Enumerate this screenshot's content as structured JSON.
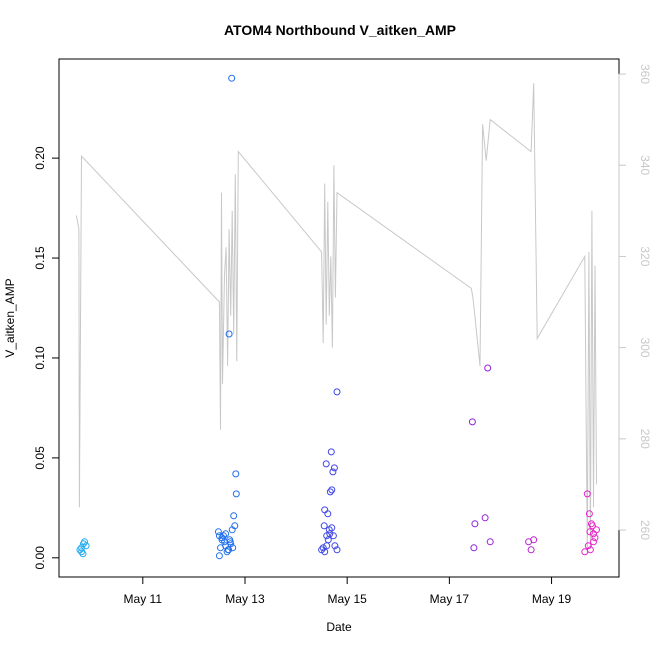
{
  "chart_data": {
    "type": "scatter",
    "title": "ATOM4 Northbound V_aitken_AMP",
    "xlabel": "Date",
    "ylabel": "V_aitken_AMP",
    "x_ticks": [
      {
        "label": "May 11",
        "value": 11
      },
      {
        "label": "May 13",
        "value": 13
      },
      {
        "label": "May 15",
        "value": 15
      },
      {
        "label": "May 17",
        "value": 17
      },
      {
        "label": "May 19",
        "value": 19
      }
    ],
    "xlim": [
      9.36,
      20.32
    ],
    "ylim": [
      -0.0096,
      0.2496
    ],
    "y_ticks": [
      0.0,
      0.05,
      0.1,
      0.15,
      0.2
    ],
    "y_tick_labels": [
      "0.00",
      "0.05",
      "0.10",
      "0.15",
      "0.20"
    ],
    "y2lim": [
      249.7,
      363.3
    ],
    "y2_ticks": [
      260,
      280,
      300,
      320,
      340,
      360
    ],
    "y2_tick_labels": [
      "260",
      "280",
      "300",
      "320",
      "340",
      "360"
    ],
    "grid": false,
    "colors": {
      "points_start": "#22aaee",
      "points_mid1": "#2266ee",
      "points_mid2": "#6622dd",
      "points_end": "#ee22cc",
      "line": "#c8c8c8",
      "axis": "#000000",
      "right_axis": "#c8c8c8"
    },
    "series": [
      {
        "kind": "points",
        "x": [
          9.77,
          9.8,
          9.83,
          9.86,
          9.89,
          9.8,
          9.84,
          12.48,
          12.5,
          12.52,
          12.55,
          12.58,
          12.6,
          12.62,
          12.65,
          12.68,
          12.7,
          12.72,
          12.75,
          12.78,
          12.8,
          12.5,
          12.55,
          12.62,
          12.67,
          12.71,
          12.76,
          12.82,
          12.69,
          12.74,
          12.83,
          14.5,
          14.53,
          14.56,
          14.6,
          14.63,
          14.66,
          14.7,
          14.73,
          14.76,
          14.8,
          14.55,
          14.6,
          14.65,
          14.7,
          14.75,
          14.56,
          14.62,
          14.67,
          14.72,
          14.59,
          14.69,
          14.8,
          17.45,
          17.48,
          17.5,
          17.7,
          17.75,
          17.8,
          18.55,
          18.6,
          18.65,
          19.65,
          19.7,
          19.72,
          19.75,
          19.78,
          19.8,
          19.82,
          19.85,
          19.88,
          19.76,
          19.82,
          19.74
        ],
        "y": [
          0.004,
          0.003,
          0.002,
          0.008,
          0.006,
          0.005,
          0.007,
          0.013,
          0.001,
          0.005,
          0.009,
          0.011,
          0.008,
          0.006,
          0.003,
          0.004,
          0.009,
          0.007,
          0.014,
          0.021,
          0.016,
          0.011,
          0.01,
          0.012,
          0.004,
          0.008,
          0.005,
          0.042,
          0.112,
          0.24,
          0.032,
          0.004,
          0.005,
          0.003,
          0.006,
          0.009,
          0.012,
          0.015,
          0.011,
          0.006,
          0.004,
          0.016,
          0.011,
          0.014,
          0.034,
          0.045,
          0.024,
          0.022,
          0.033,
          0.043,
          0.047,
          0.053,
          0.083,
          0.068,
          0.005,
          0.017,
          0.02,
          0.095,
          0.008,
          0.008,
          0.004,
          0.009,
          0.003,
          0.032,
          0.006,
          0.013,
          0.017,
          0.016,
          0.012,
          0.01,
          0.014,
          0.004,
          0.008,
          0.022
        ]
      },
      {
        "kind": "line",
        "axis": "right",
        "x": [
          9.7,
          9.75,
          9.76,
          9.8,
          12.5,
          12.52,
          12.54,
          12.56,
          12.6,
          12.63,
          12.66,
          12.69,
          12.72,
          12.75,
          12.78,
          12.81,
          12.84,
          12.87,
          14.5,
          14.53,
          14.56,
          14.59,
          14.62,
          14.65,
          14.68,
          14.71,
          14.74,
          14.77,
          14.8,
          17.43,
          17.46,
          17.49,
          17.6,
          17.65,
          17.72,
          17.8,
          18.6,
          18.65,
          18.72,
          19.65,
          19.7,
          19.73,
          19.76,
          19.79,
          19.82,
          19.85,
          19.88
        ],
        "y": [
          329,
          326,
          265,
          342,
          310,
          282,
          334,
          292,
          316,
          322,
          296,
          326,
          307,
          330,
          303,
          338,
          297,
          343,
          321,
          301,
          336,
          305,
          332,
          307,
          320,
          300,
          340,
          311,
          334,
          313,
          311,
          308,
          296,
          349,
          341,
          350,
          343,
          358,
          302,
          320,
          255,
          321,
          256,
          330,
          265,
          318,
          270
        ]
      }
    ]
  }
}
